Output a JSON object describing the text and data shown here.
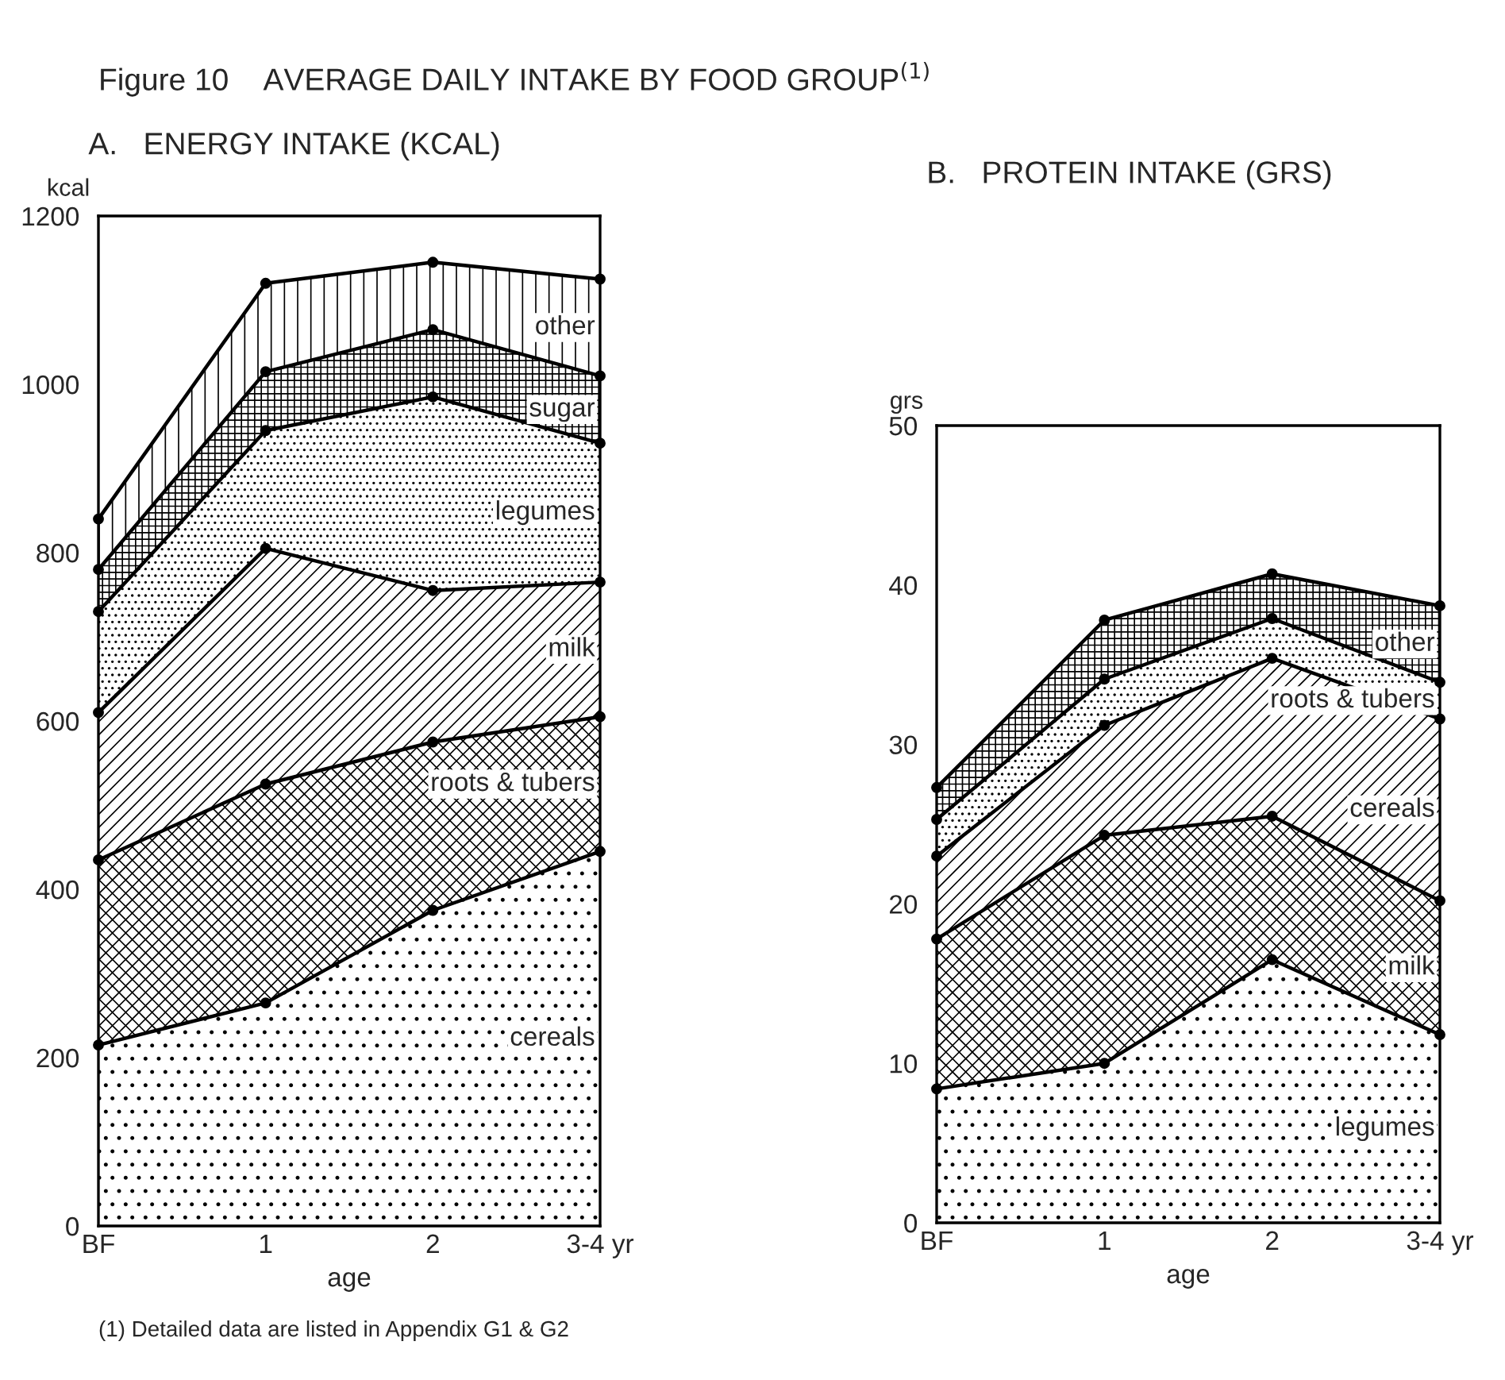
{
  "chart_data": [
    {
      "type": "area",
      "stacked": true,
      "title": "Figure 10    AVERAGE DAILY INTAKE BY FOOD GROUP$^{(1)}$",
      "subtitle": "A.   ENERGY INTAKE (KCAL)",
      "xlabel": "age",
      "ylabel": "kcal",
      "categories": [
        "BF",
        "1",
        "2",
        "3-4 yr"
      ],
      "ylim": [
        0,
        1200
      ],
      "yticks": [
        0,
        200,
        400,
        600,
        800,
        1000,
        1200
      ],
      "grid": false,
      "legend": false,
      "marker": "circle",
      "annotations": [
        "(1) Detailed data are listed in Appendix G1 & G2"
      ],
      "series": [
        {
          "name": "cereals",
          "color": "#000000",
          "values": [
            215,
            265,
            375,
            445
          ]
        },
        {
          "name": "roots & tubers",
          "color": "#000000",
          "values": [
            220,
            260,
            200,
            160
          ]
        },
        {
          "name": "milk",
          "color": "#000000",
          "values": [
            175,
            280,
            180,
            160
          ]
        },
        {
          "name": "legumes",
          "color": "#000000",
          "values": [
            120,
            140,
            230,
            165
          ]
        },
        {
          "name": "sugar",
          "color": "#000000",
          "values": [
            50,
            70,
            80,
            80
          ]
        },
        {
          "name": "other",
          "color": "#000000",
          "values": [
            60,
            105,
            80,
            115
          ]
        }
      ]
    },
    {
      "type": "area",
      "stacked": true,
      "subtitle": "B.   PROTEIN INTAKE (GRS)",
      "xlabel": "age",
      "ylabel": "grs",
      "categories": [
        "BF",
        "1",
        "2",
        "3-4 yr"
      ],
      "ylim": [
        0,
        50
      ],
      "yticks": [
        0,
        10,
        20,
        30,
        40,
        50
      ],
      "grid": false,
      "legend": false,
      "marker": "circle",
      "series": [
        {
          "name": "legumes",
          "color": "#000000",
          "values": [
            8.4,
            10,
            16.5,
            11.8
          ]
        },
        {
          "name": "milk",
          "color": "#000000",
          "values": [
            9.4,
            14.3,
            9,
            8.4
          ]
        },
        {
          "name": "cereals",
          "color": "#000000",
          "values": [
            5.2,
            6.9,
            9.9,
            11.4
          ]
        },
        {
          "name": "roots & tubers",
          "color": "#000000",
          "values": [
            2.3,
            2.9,
            2.5,
            2.3
          ]
        },
        {
          "name": "other",
          "color": "#000000",
          "values": [
            2,
            3.7,
            2.8,
            4.8
          ]
        }
      ]
    }
  ]
}
